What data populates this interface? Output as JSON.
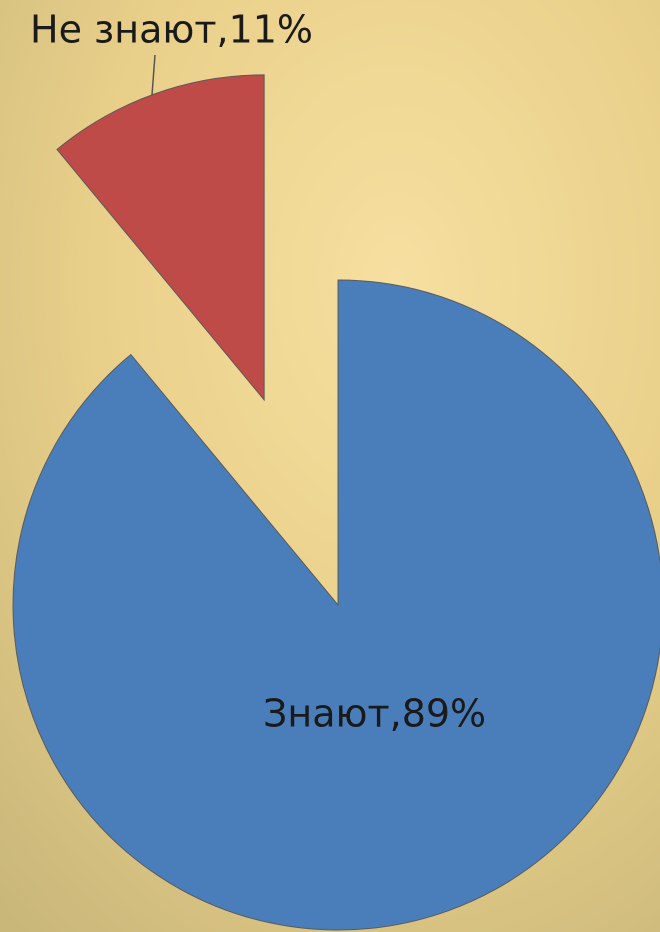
{
  "chart_data": {
    "type": "pie",
    "values": [
      89,
      11
    ],
    "value_labels": [
      "Знают,89%",
      "Не знают,11%"
    ],
    "colors": [
      "#4a7ebb",
      "#be4b48"
    ]
  }
}
